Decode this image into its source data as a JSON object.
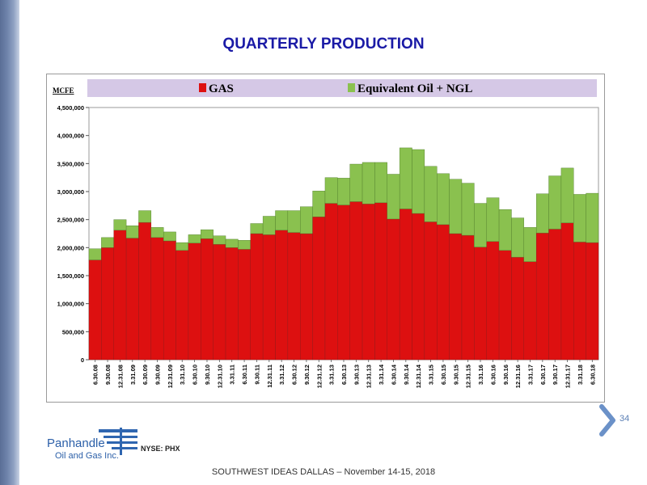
{
  "slide": {
    "title": "QUARTERLY PRODUCTION",
    "page_number": "34",
    "footer": "SOUTHWEST IDEAS DALLAS – November 14-15, 2018",
    "logo": {
      "line1": "Panhandle",
      "line2": "Oil and Gas Inc.",
      "ticker": "NYSE: PHX"
    }
  },
  "colors": {
    "gas": "#dd1010",
    "oil_ngl": "#8ac14f",
    "title": "#1a1aa6",
    "legend_band": "#d5c8e6"
  },
  "chart_data": {
    "type": "bar",
    "stacked": true,
    "ylabel": "MCFE",
    "ylim": [
      0,
      4500000
    ],
    "yticks": [
      0,
      500000,
      1000000,
      1500000,
      2000000,
      2500000,
      3000000,
      3500000,
      4000000,
      4500000
    ],
    "ytick_labels": [
      "0",
      "500,000",
      "1,000,000",
      "1,500,000",
      "2,000,000",
      "2,500,000",
      "3,000,000",
      "3,500,000",
      "4,000,000",
      "4,500,000"
    ],
    "legend_position": "top",
    "grid": false,
    "categories": [
      "6.30.08",
      "9.30.08",
      "12.31.08",
      "3.31.09",
      "6.30.09",
      "9.30.09",
      "12.31.09",
      "3.31.10",
      "6.30.10",
      "9.30.10",
      "12.31.10",
      "3.31.11",
      "6.30.11",
      "9.30.11",
      "12.31.11",
      "3.31.12",
      "6.30.12",
      "9.30.12",
      "12.31.12",
      "3.31.13",
      "6.30.13",
      "9.30.13",
      "12.31.13",
      "3.31.14",
      "6.30.14",
      "9.30.14",
      "12.31.14",
      "3.31.15",
      "6.30.15",
      "9.30.15",
      "12.31.15",
      "3.31.16",
      "6.30.16",
      "9.30.16",
      "12.31.16",
      "3.31.17",
      "6.30.17",
      "9.30.17",
      "12.31.17",
      "3.31.18",
      "6.30.18"
    ],
    "series": [
      {
        "name": "GAS",
        "values": [
          1780000,
          2000000,
          2310000,
          2170000,
          2450000,
          2180000,
          2120000,
          1950000,
          2080000,
          2160000,
          2060000,
          2000000,
          1970000,
          2250000,
          2230000,
          2310000,
          2270000,
          2250000,
          2550000,
          2790000,
          2760000,
          2820000,
          2780000,
          2800000,
          2510000,
          2690000,
          2610000,
          2460000,
          2410000,
          2250000,
          2220000,
          2010000,
          2110000,
          1950000,
          1830000,
          1750000,
          2260000,
          2330000,
          2440000,
          2100000,
          2090000
        ]
      },
      {
        "name": "Equivalent Oil + NGL",
        "values": [
          200000,
          180000,
          190000,
          220000,
          210000,
          180000,
          160000,
          140000,
          150000,
          160000,
          150000,
          150000,
          160000,
          180000,
          330000,
          350000,
          390000,
          480000,
          460000,
          460000,
          480000,
          670000,
          740000,
          720000,
          800000,
          1090000,
          1140000,
          990000,
          910000,
          970000,
          930000,
          780000,
          780000,
          730000,
          700000,
          610000,
          700000,
          950000,
          980000,
          850000,
          880000
        ]
      }
    ]
  }
}
